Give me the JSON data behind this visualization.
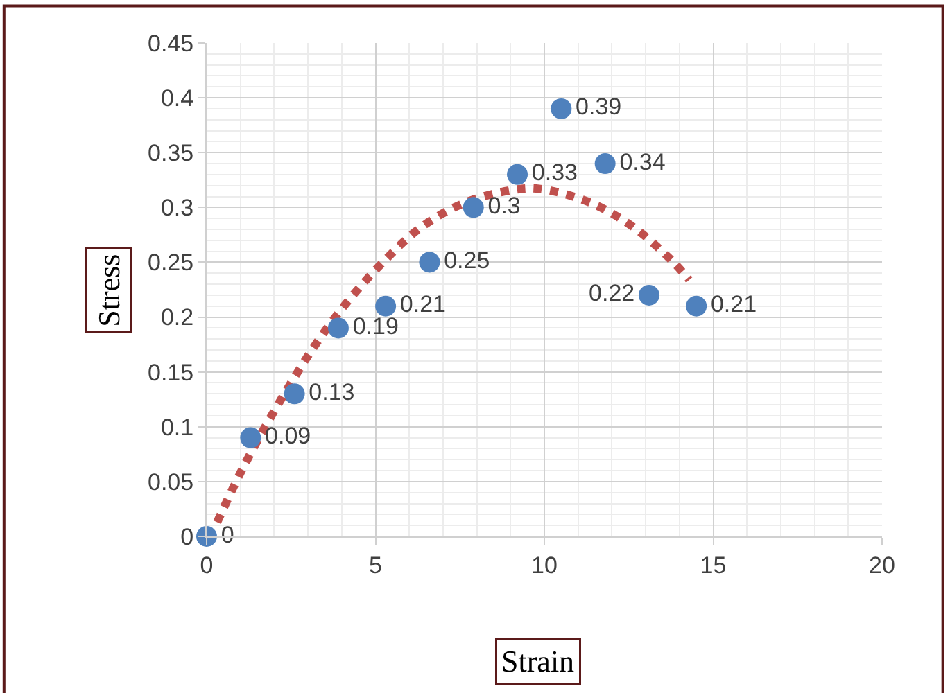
{
  "chart_data": {
    "type": "scatter",
    "xlabel": "Strain",
    "ylabel": "Stress",
    "xlim": [
      0,
      20
    ],
    "xticks": [
      0,
      5,
      10,
      15,
      20
    ],
    "ylim": [
      0,
      0.45
    ],
    "yticks": [
      0,
      0.05,
      0.1,
      0.15,
      0.2,
      0.25,
      0.3,
      0.35,
      0.4,
      0.45
    ],
    "grid": true,
    "series": [
      {
        "type": "line",
        "line_style": "dotted",
        "color": "#c0504d",
        "x": [
          0.31,
          0.97,
          1.68,
          2.46,
          3.27,
          4.17,
          5.19,
          6.31,
          7.62,
          9.08,
          9.84,
          11.31,
          12.64,
          13.79,
          14.29
        ],
        "values": [
          0.013,
          0.056,
          0.097,
          0.138,
          0.177,
          0.214,
          0.249,
          0.281,
          0.304,
          0.316,
          0.317,
          0.305,
          0.282,
          0.251,
          0.234
        ]
      },
      {
        "marker": "circle",
        "color": "#4f81bd",
        "x": [
          0,
          1.3,
          2.6,
          3.9,
          5.3,
          6.6,
          7.9,
          9.2,
          10.5,
          11.8,
          13.1,
          14.5
        ],
        "values": [
          0,
          0.09,
          0.13,
          0.19,
          0.21,
          0.25,
          0.3,
          0.33,
          0.39,
          0.34,
          0.22,
          0.21
        ],
        "value_labels": [
          "0",
          "0.09",
          "0.13",
          "0.19",
          "0.21",
          "0.25",
          "0.3",
          "0.33",
          "0.39",
          "0.34",
          "0.22",
          "0.21"
        ]
      }
    ]
  }
}
